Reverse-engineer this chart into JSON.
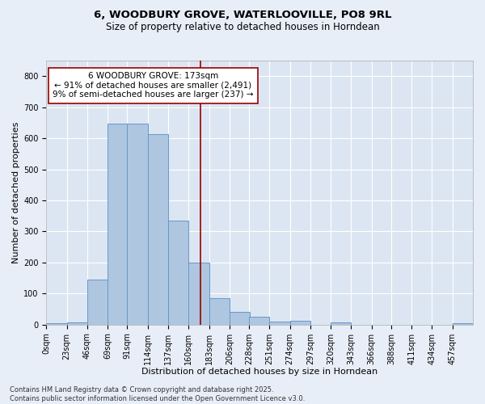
{
  "title": "6, WOODBURY GROVE, WATERLOOVILLE, PO8 9RL",
  "subtitle": "Size of property relative to detached houses in Horndean",
  "xlabel": "Distribution of detached houses by size in Horndean",
  "ylabel": "Number of detached properties",
  "bar_color": "#aec6e0",
  "bar_edge_color": "#6699cc",
  "background_color": "#dce6f2",
  "grid_color": "#ffffff",
  "annotation_line_color": "#990000",
  "annotation_box_color": "#990000",
  "annotation_text": "6 WOODBURY GROVE: 173sqm\n← 91% of detached houses are smaller (2,491)\n9% of semi-detached houses are larger (237) →",
  "vline_x": 173,
  "categories": [
    "0sqm",
    "23sqm",
    "46sqm",
    "69sqm",
    "91sqm",
    "114sqm",
    "137sqm",
    "160sqm",
    "183sqm",
    "206sqm",
    "228sqm",
    "251sqm",
    "274sqm",
    "297sqm",
    "320sqm",
    "343sqm",
    "366sqm",
    "388sqm",
    "411sqm",
    "434sqm",
    "457sqm"
  ],
  "bin_edges": [
    0,
    23,
    46,
    69,
    91,
    114,
    137,
    160,
    183,
    206,
    228,
    251,
    274,
    297,
    320,
    343,
    366,
    388,
    411,
    434,
    457
  ],
  "bin_width": 23,
  "bar_heights": [
    5,
    8,
    145,
    648,
    648,
    612,
    335,
    200,
    85,
    40,
    25,
    10,
    12,
    0,
    8,
    0,
    0,
    0,
    0,
    0,
    5
  ],
  "ylim": [
    0,
    850
  ],
  "yticks": [
    0,
    100,
    200,
    300,
    400,
    500,
    600,
    700,
    800
  ],
  "footnote": "Contains HM Land Registry data © Crown copyright and database right 2025.\nContains public sector information licensed under the Open Government Licence v3.0.",
  "title_fontsize": 9.5,
  "subtitle_fontsize": 8.5,
  "axis_label_fontsize": 8,
  "tick_fontsize": 7,
  "annotation_fontsize": 7.5,
  "footnote_fontsize": 6
}
